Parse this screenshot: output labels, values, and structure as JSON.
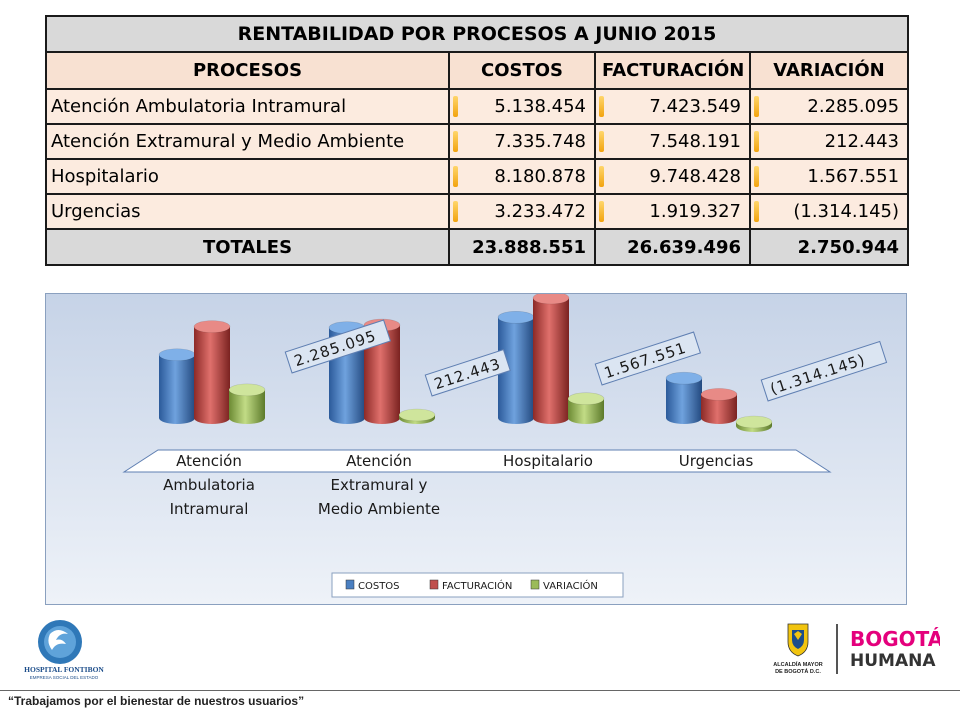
{
  "table": {
    "title": "RENTABILIDAD POR PROCESOS A JUNIO 2015",
    "headers": [
      "PROCESOS",
      "COSTOS",
      "FACTURACIÓN",
      "VARIACIÓN"
    ],
    "rows": [
      {
        "proceso": "Atención Ambulatoria Intramural",
        "costos": "5.138.454",
        "facturacion": "7.423.549",
        "variacion": "2.285.095"
      },
      {
        "proceso": "Atención Extramural y Medio Ambiente",
        "costos": "7.335.748",
        "facturacion": "7.548.191",
        "variacion": "212.443"
      },
      {
        "proceso": "Hospitalario",
        "costos": "8.180.878",
        "facturacion": "9.748.428",
        "variacion": "1.567.551"
      },
      {
        "proceso": "Urgencias",
        "costos": "3.233.472",
        "facturacion": "1.919.327",
        "variacion": "(1.314.145)"
      }
    ],
    "totals": {
      "label": "TOTALES",
      "costos": "23.888.551",
      "facturacion": "26.639.496",
      "variacion": "2.750.944"
    }
  },
  "chart_data": {
    "type": "bar",
    "style": "3d-cylinder",
    "categories": [
      "Atención Ambulatoria Intramural",
      "Atención Extramural y Medio Ambiente",
      "Hospitalario",
      "Urgencias"
    ],
    "category_lines": [
      [
        "Atención",
        "Ambulatoria",
        "Intramural"
      ],
      [
        "Atención",
        "Extramural y",
        "Medio Ambiente"
      ],
      [
        "Hospitalario"
      ],
      [
        "Urgencias"
      ]
    ],
    "series": [
      {
        "name": "COSTOS",
        "values": [
          5138454,
          7335748,
          8180878,
          3233472
        ],
        "color": "#4a7fc1"
      },
      {
        "name": "FACTURACIÓN",
        "values": [
          7423549,
          7548191,
          9748428,
          1919327
        ],
        "color": "#c0504d"
      },
      {
        "name": "VARIACIÓN",
        "values": [
          2285095,
          212443,
          1567551,
          -1314145
        ],
        "color": "#9bbb59"
      }
    ],
    "data_labels": [
      "2.285.095",
      "212.443",
      "1.567.551",
      "(1.314.145)"
    ],
    "legend_position": "bottom",
    "grid": false
  },
  "footer": {
    "logo_left_name": "HOSPITAL FONTIBON",
    "logo_left_sub": "EMPRESA SOCIAL DEL ESTADO",
    "logo_right_text1": "ALCALDÍA MAYOR",
    "logo_right_text2": "DE BOGOTÁ D.C.",
    "logo_right_brand1": "BOGOTÁ",
    "logo_right_brand2": "HUMANA",
    "slogan": "“Trabajamos por el bienestar de nuestros usuarios”"
  },
  "colors": {
    "accent_orange": "#f2a30f",
    "brand_pink": "#e4007c"
  }
}
